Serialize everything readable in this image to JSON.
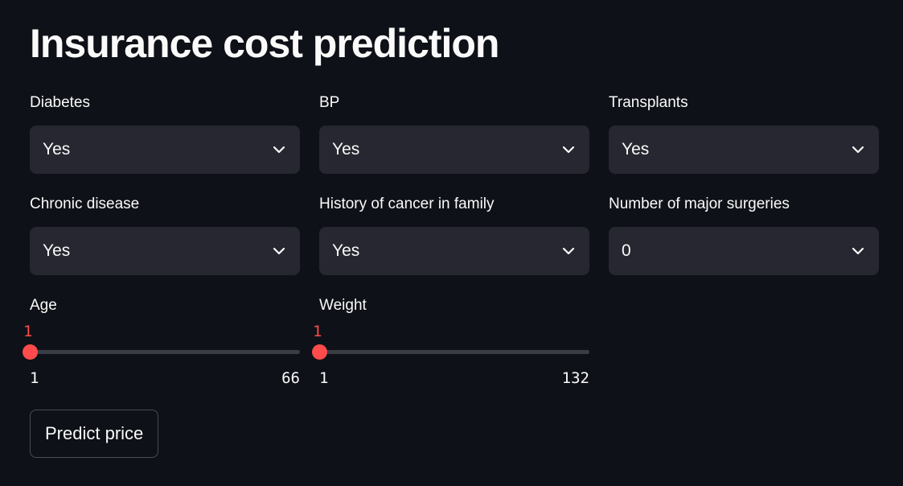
{
  "page": {
    "title": "Insurance cost prediction"
  },
  "selects": [
    {
      "label": "Diabetes",
      "value": "Yes"
    },
    {
      "label": "BP",
      "value": "Yes"
    },
    {
      "label": "Transplants",
      "value": "Yes"
    },
    {
      "label": "Chronic disease",
      "value": "Yes"
    },
    {
      "label": "History of cancer in family",
      "value": "Yes"
    },
    {
      "label": "Number of major surgeries",
      "value": "0"
    }
  ],
  "sliders": {
    "age": {
      "label": "Age",
      "value": "1",
      "min": "1",
      "max": "66"
    },
    "weight": {
      "label": "Weight",
      "value": "1",
      "min": "1",
      "max": "132"
    }
  },
  "buttons": {
    "predict_label": "Predict price"
  },
  "icons": {
    "dropdown": "chevron-down-icon"
  },
  "colors": {
    "background": "#0e1117",
    "input_background": "#262730",
    "accent": "#ff4b4b",
    "text": "#fafafa"
  }
}
